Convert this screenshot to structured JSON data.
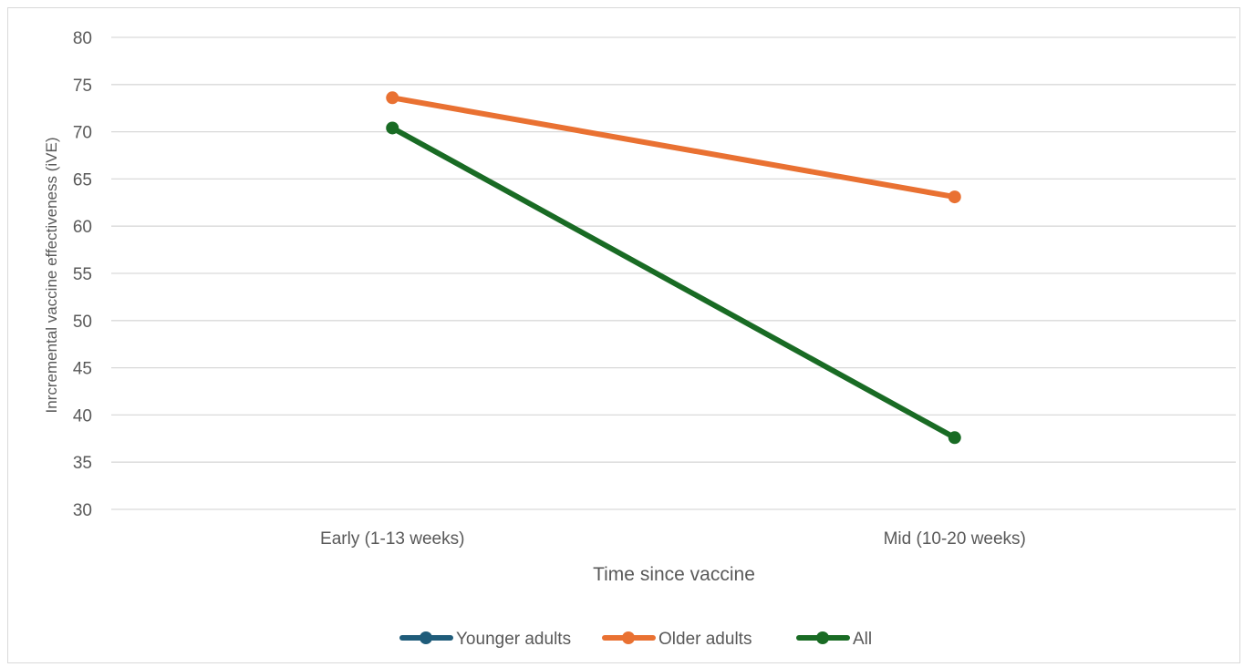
{
  "chart_data": {
    "type": "line",
    "title": "",
    "xlabel": "Time since vaccine",
    "ylabel": "Inrcremental vaccine effectiveness (iVE)",
    "categories": [
      "Early (1-13 weeks)",
      "Mid (10-20 weeks)"
    ],
    "ylim": [
      30,
      80
    ],
    "yticks": [
      30,
      35,
      40,
      45,
      50,
      55,
      60,
      65,
      70,
      75,
      80
    ],
    "grid": true,
    "legend_position": "bottom",
    "series": [
      {
        "name": "Younger adults",
        "color": "#1f5c7a",
        "values": [
          null,
          null
        ]
      },
      {
        "name": "Older adults",
        "color": "#e97132",
        "values": [
          73.6,
          63.1
        ]
      },
      {
        "name": "All",
        "color": "#196b24",
        "values": [
          70.4,
          37.6
        ]
      }
    ]
  }
}
